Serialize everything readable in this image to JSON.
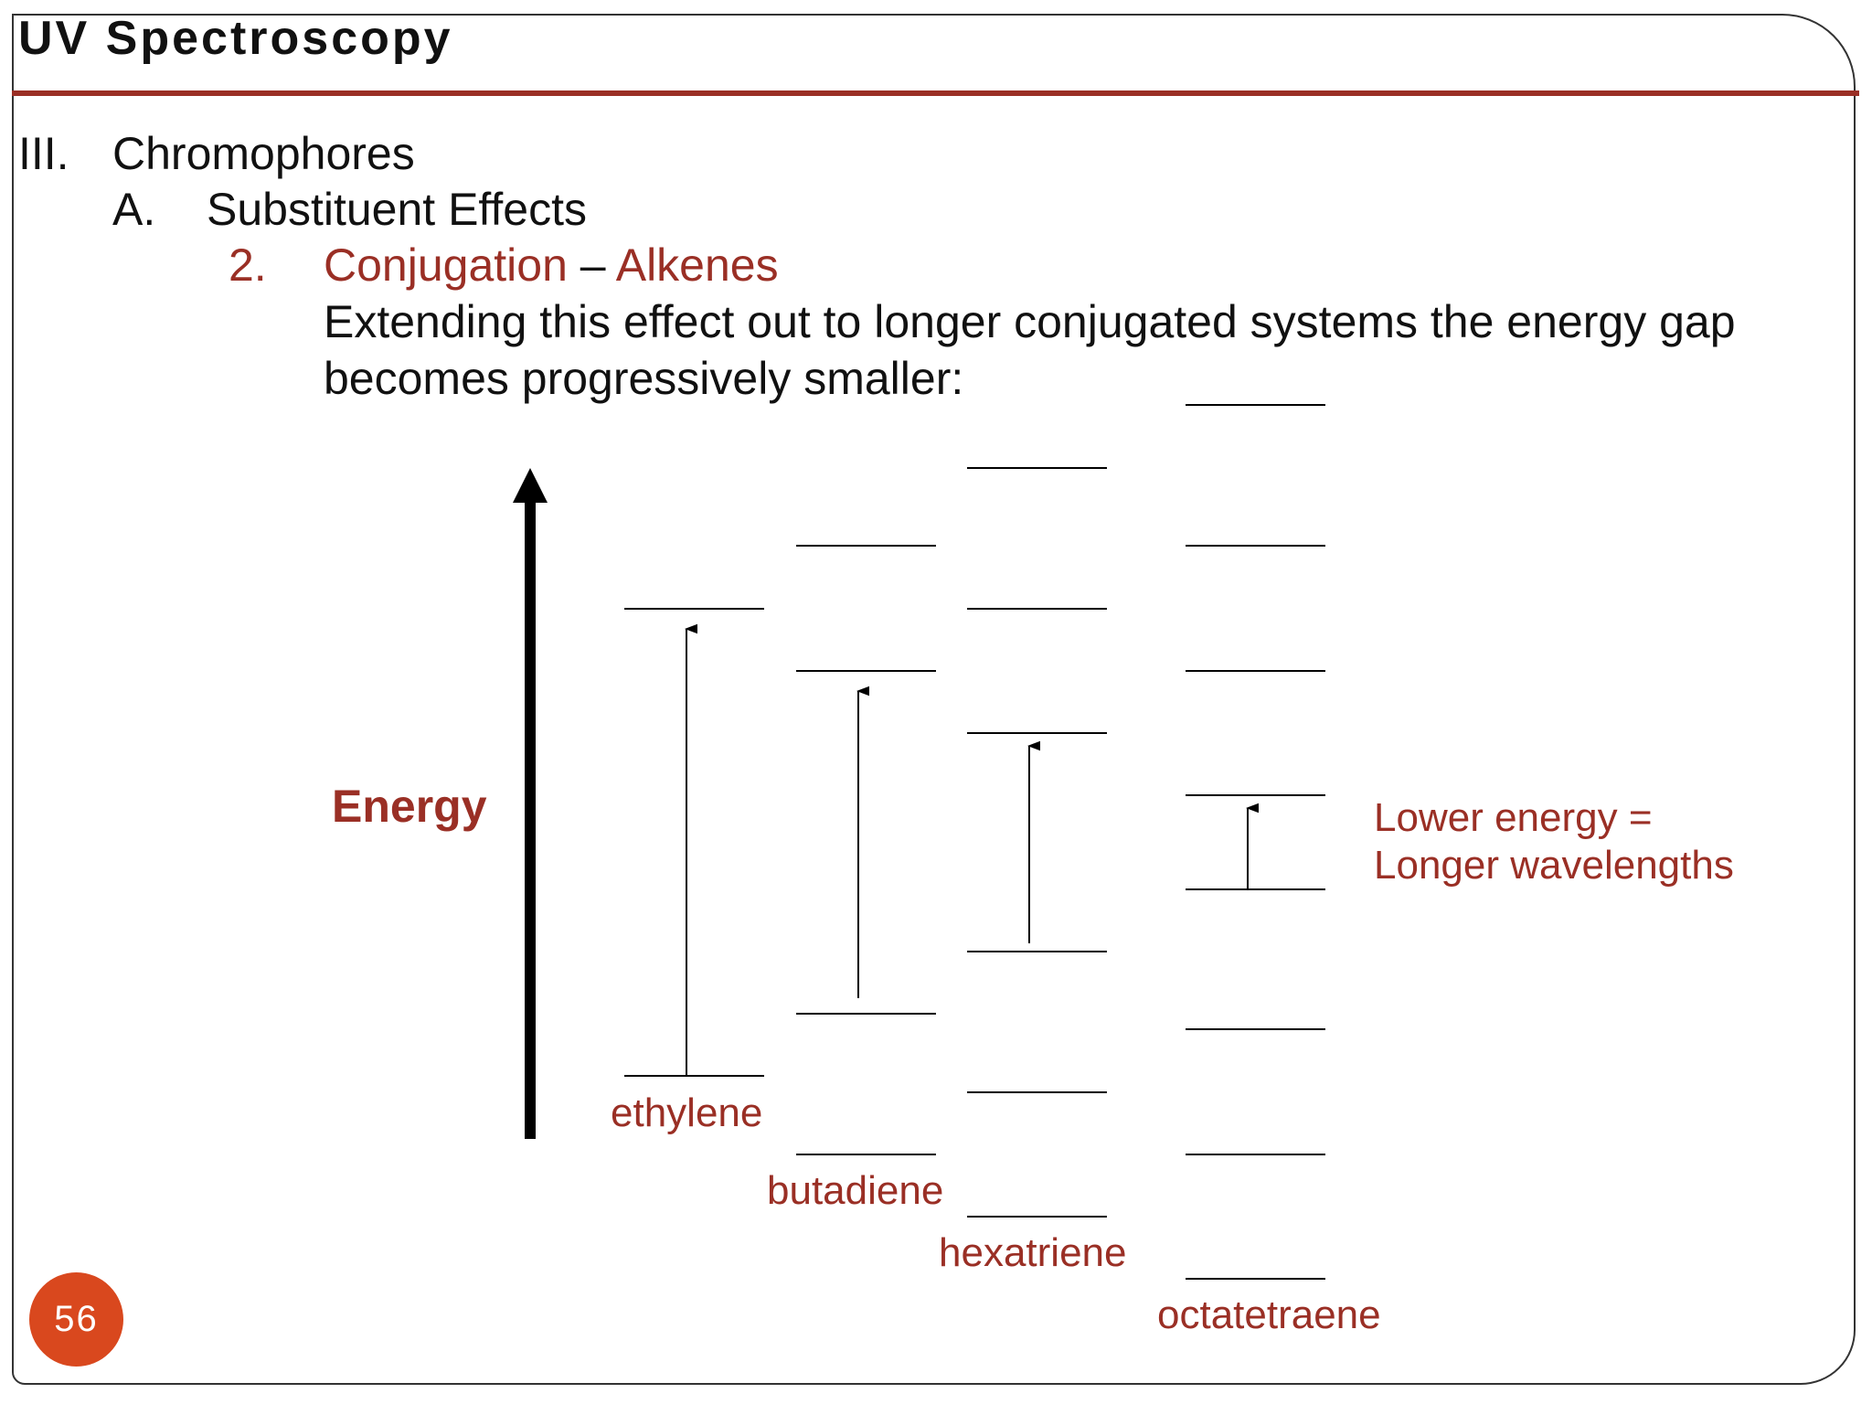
{
  "slide": {
    "title": "UV Spectroscopy",
    "page_number": "56",
    "accent_color": "#9a2f25",
    "badge_color": "#d9481e"
  },
  "outline": {
    "level1": {
      "marker": "III.",
      "text": "Chromophores"
    },
    "level2": {
      "marker": "A.",
      "text": "Substituent Effects"
    },
    "level3": {
      "marker": "2.",
      "text_red": "Conjugation",
      "dash": " – ",
      "text_red2": "Alkenes"
    },
    "body_line1": "Extending this effect out to longer conjugated systems the energy gap",
    "body_line2": "becomes progressively smaller:"
  },
  "diagram": {
    "axis_label": "Energy",
    "molecules": [
      {
        "name": "ethylene",
        "levels": 2
      },
      {
        "name": "butadiene",
        "levels": 4
      },
      {
        "name": "hexatriene",
        "levels": 6
      },
      {
        "name": "octatetraene",
        "levels": 8
      }
    ],
    "note_line1": "Lower energy =",
    "note_line2": "Longer wavelengths"
  }
}
